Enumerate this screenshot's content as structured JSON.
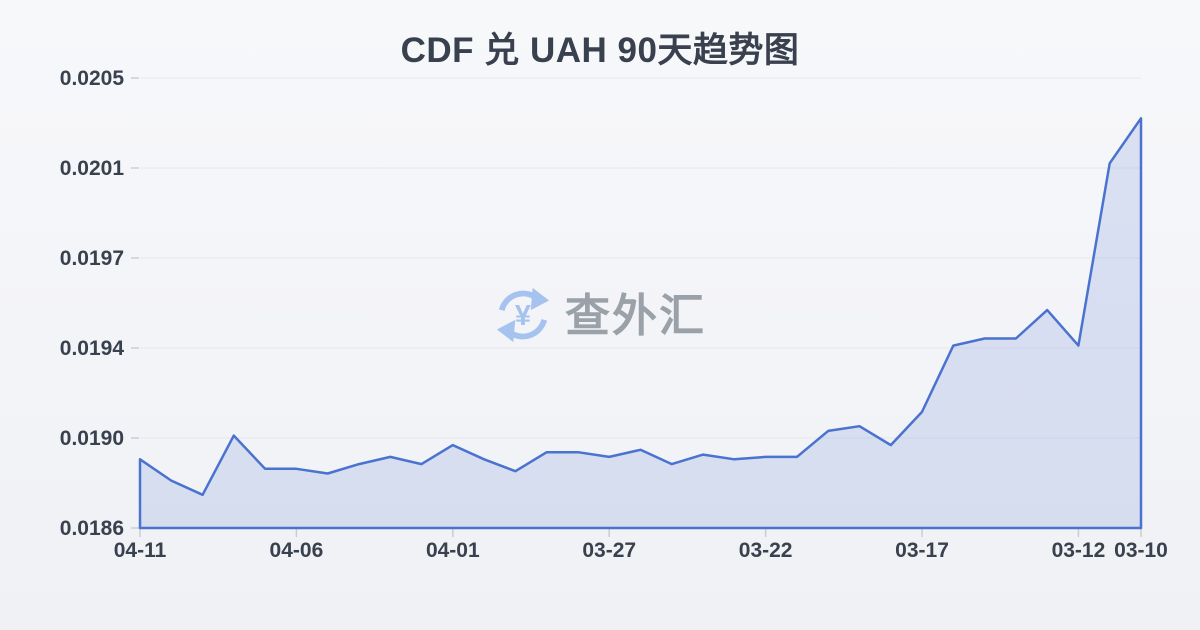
{
  "title": "CDF 兑 UAH 90天趋势图",
  "watermark": {
    "text": "查外汇",
    "icon": "currency-exchange-refresh-icon",
    "icon_symbol": "¥",
    "icon_color": "#a6c2ee",
    "text_color": "#9aa1a9"
  },
  "chart_data": {
    "type": "area",
    "title": "CDF 兑 UAH 90天趋势图",
    "x": [
      "04-11",
      "04-10",
      "04-09",
      "04-08",
      "04-07",
      "04-06",
      "04-05",
      "04-04",
      "04-03",
      "04-02",
      "04-01",
      "03-31",
      "03-30",
      "03-29",
      "03-28",
      "03-27",
      "03-26",
      "03-25",
      "03-24",
      "03-23",
      "03-22",
      "03-21",
      "03-20",
      "03-19",
      "03-18",
      "03-17",
      "03-16",
      "03-15",
      "03-14",
      "03-13",
      "03-12",
      "03-11",
      "03-10"
    ],
    "values": [
      0.01889,
      0.0188,
      0.01874,
      0.01899,
      0.01885,
      0.01885,
      0.01883,
      0.01887,
      0.0189,
      0.01887,
      0.01895,
      0.01889,
      0.01884,
      0.01892,
      0.01892,
      0.0189,
      0.01893,
      0.01887,
      0.01891,
      0.01889,
      0.0189,
      0.0189,
      0.01901,
      0.01903,
      0.01895,
      0.01909,
      0.01937,
      0.0194,
      0.0194,
      0.01952,
      0.01937,
      0.02014,
      0.02033
    ],
    "x_tick_indices": [
      0,
      5,
      10,
      15,
      20,
      25,
      30,
      32
    ],
    "x_tick_labels": [
      "04-11",
      "04-06",
      "04-01",
      "03-27",
      "03-22",
      "03-17",
      "03-12",
      "03-10"
    ],
    "y_tick_labels": [
      "0.0186",
      "0.0190",
      "0.0194",
      "0.0197",
      "0.0201",
      "0.0205"
    ],
    "ylim": [
      0.0186,
      0.0205
    ],
    "xlabel": "",
    "ylabel": "",
    "grid": true,
    "legend_position": "none",
    "line_color": "#4a72cf",
    "fill_color": "rgba(74,114,207,0.16)",
    "grid_color": "#e4e7ec",
    "tick_color": "#c9ced6",
    "axis_label_color": "#39414e"
  }
}
